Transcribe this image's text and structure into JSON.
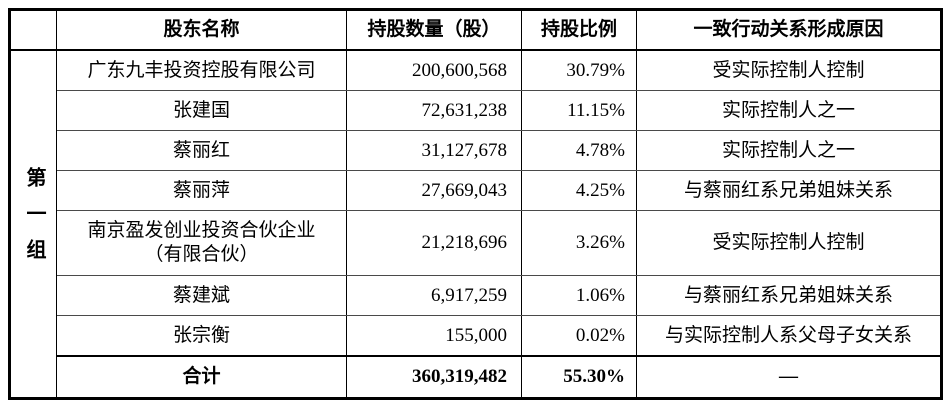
{
  "table": {
    "group_label": "第一组",
    "columns": {
      "name": "股东名称",
      "shares": "持股数量（股）",
      "ratio": "持股比例",
      "reason": "一致行动关系形成原因"
    },
    "rows": [
      {
        "name": "广东九丰投资控股有限公司",
        "shares": "200,600,568",
        "ratio": "30.79%",
        "reason": "受实际控制人控制"
      },
      {
        "name": "张建国",
        "shares": "72,631,238",
        "ratio": "11.15%",
        "reason": "实际控制人之一"
      },
      {
        "name": "蔡丽红",
        "shares": "31,127,678",
        "ratio": "4.78%",
        "reason": "实际控制人之一"
      },
      {
        "name": "蔡丽萍",
        "shares": "27,669,043",
        "ratio": "4.25%",
        "reason": "与蔡丽红系兄弟姐妹关系"
      },
      {
        "name": "南京盈发创业投资合伙企业\n（有限合伙）",
        "shares": "21,218,696",
        "ratio": "3.26%",
        "reason": "受实际控制人控制"
      },
      {
        "name": "蔡建斌",
        "shares": "6,917,259",
        "ratio": "1.06%",
        "reason": "与蔡丽红系兄弟姐妹关系"
      },
      {
        "name": "张宗衡",
        "shares": "155,000",
        "ratio": "0.02%",
        "reason": "与实际控制人系父母子女关系"
      }
    ],
    "total": {
      "label": "合计",
      "shares": "360,319,482",
      "ratio": "55.30%",
      "reason": "—"
    }
  }
}
